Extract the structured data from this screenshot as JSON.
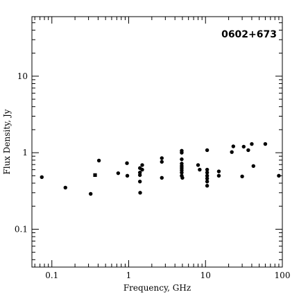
{
  "chart_data": {
    "type": "scatter",
    "title": "0602+673",
    "xlabel": "Frequency, GHz",
    "ylabel": "Flux Density, Jy",
    "xscale": "log",
    "yscale": "log",
    "xlim": [
      0.055,
      100
    ],
    "ylim": [
      0.032,
      60
    ],
    "grid": false,
    "legend": "none",
    "x_tick_labels": [
      {
        "value": 0.1,
        "label": "0.1"
      },
      {
        "value": 1,
        "label": "1"
      },
      {
        "value": 10,
        "label": "10"
      },
      {
        "value": 100,
        "label": "100"
      }
    ],
    "y_tick_labels": [
      {
        "value": 0.1,
        "label": "0.1"
      },
      {
        "value": 1,
        "label": "1"
      },
      {
        "value": 10,
        "label": "10"
      }
    ],
    "series": [
      {
        "marker": "circle",
        "points": [
          [
            0.074,
            0.48
          ],
          [
            0.15,
            0.35
          ],
          [
            0.32,
            0.29
          ],
          [
            0.41,
            0.79
          ],
          [
            0.73,
            0.54
          ],
          [
            0.95,
            0.73
          ],
          [
            0.96,
            0.5
          ],
          [
            1.4,
            0.63
          ],
          [
            1.4,
            0.55
          ],
          [
            1.4,
            0.51
          ],
          [
            1.4,
            0.42
          ],
          [
            1.41,
            0.3
          ],
          [
            1.5,
            0.69
          ],
          [
            1.5,
            0.6
          ],
          [
            2.7,
            0.85
          ],
          [
            2.7,
            0.76
          ],
          [
            2.7,
            0.47
          ],
          [
            4.9,
            1.06
          ],
          [
            4.9,
            1.0
          ],
          [
            4.9,
            0.82
          ],
          [
            4.9,
            0.72
          ],
          [
            4.9,
            0.67
          ],
          [
            4.9,
            0.63
          ],
          [
            4.9,
            0.59
          ],
          [
            4.9,
            0.55
          ],
          [
            4.9,
            0.5
          ],
          [
            5.0,
            0.47
          ],
          [
            8.0,
            0.69
          ],
          [
            8.4,
            0.6
          ],
          [
            10.5,
            1.08
          ],
          [
            10.5,
            0.6
          ],
          [
            10.5,
            0.55
          ],
          [
            10.5,
            0.5
          ],
          [
            10.5,
            0.46
          ],
          [
            10.5,
            0.42
          ],
          [
            10.5,
            0.37
          ],
          [
            14.9,
            0.57
          ],
          [
            14.9,
            0.5
          ],
          [
            22.0,
            1.02
          ],
          [
            23.0,
            1.21
          ],
          [
            30.0,
            0.49
          ],
          [
            31.4,
            1.2
          ],
          [
            36.0,
            1.08
          ],
          [
            40.0,
            1.3
          ],
          [
            42.0,
            0.67
          ],
          [
            60.0,
            1.3
          ],
          [
            90.0,
            0.5
          ]
        ]
      },
      {
        "marker": "square",
        "points": [
          [
            0.365,
            0.51
          ]
        ]
      }
    ]
  }
}
